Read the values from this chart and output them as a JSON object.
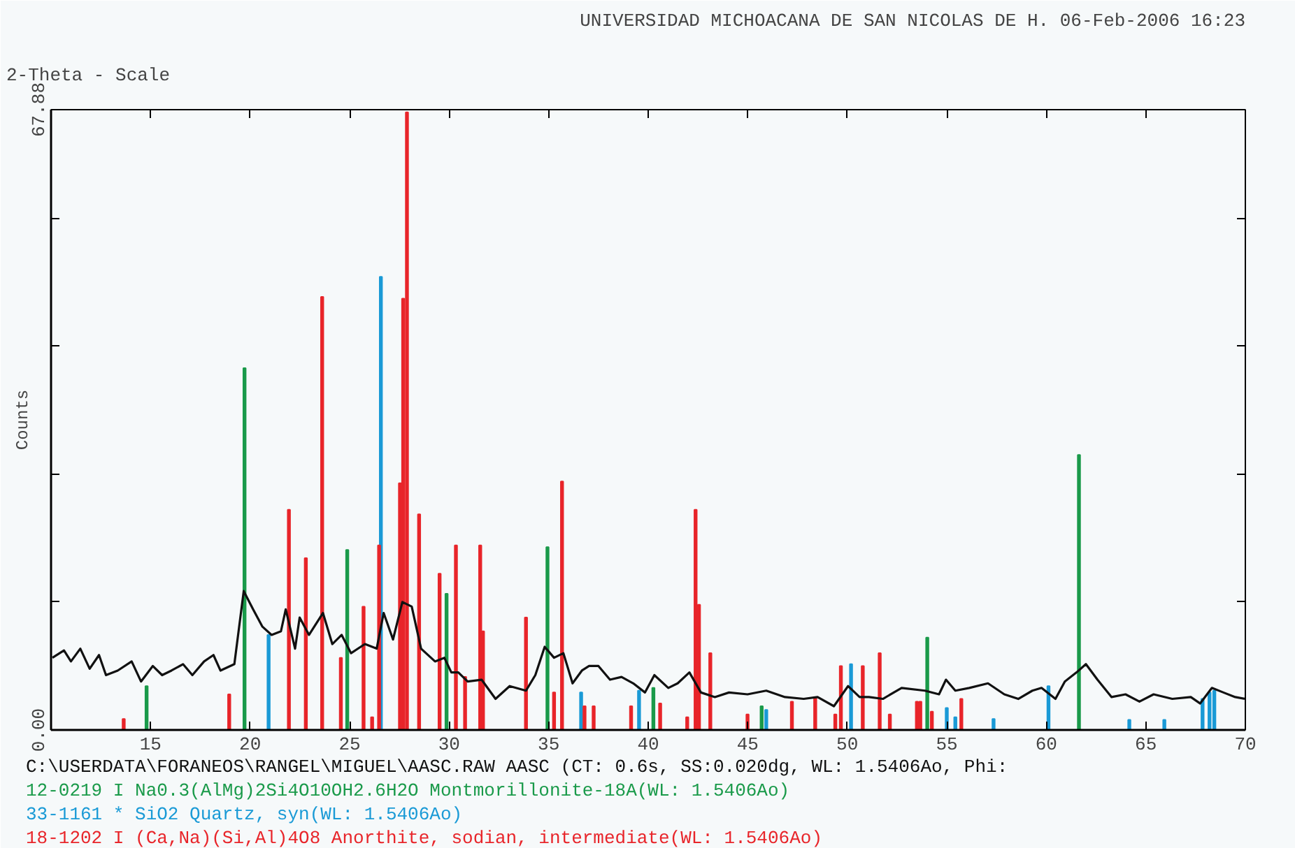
{
  "chart_data": {
    "type": "bar",
    "title": "UNIVERSIDAD MICHOACANA DE SAN NICOLAS DE H. 06-Feb-2006 16:23",
    "xlabel": "2-Theta - Scale",
    "ylabel": "Counts",
    "xlim": [
      10,
      70
    ],
    "ylim": [
      0,
      67.88
    ],
    "xticks": [
      15,
      20,
      25,
      30,
      35,
      40,
      45,
      50,
      55,
      60,
      65,
      70
    ],
    "yticks": [
      {
        "value": 0,
        "label": "0.00"
      },
      {
        "value": 14,
        "label": null
      },
      {
        "value": 28,
        "label": null
      },
      {
        "value": 42,
        "label": null
      },
      {
        "value": 56,
        "label": null
      },
      {
        "value": 67.88,
        "label": "67.88"
      }
    ],
    "grid": false,
    "series": [
      {
        "name": "C:\\USERDATA\\FORANEOS\\RANGEL\\MIGUEL\\AASC.RAW AASC (CT:  0.6s, SS:0.020dg, WL: 1.5406Ao, Phi:",
        "type": "line",
        "color": "#111111",
        "x": [
          10.07,
          10.65,
          11.0,
          11.47,
          11.94,
          12.41,
          12.76,
          13.35,
          14.05,
          14.52,
          15.11,
          15.58,
          16.05,
          16.63,
          17.1,
          17.69,
          18.16,
          18.51,
          19.21,
          19.68,
          20.15,
          20.62,
          21.08,
          21.55,
          21.79,
          22.26,
          22.49,
          22.96,
          23.66,
          24.13,
          24.6,
          25.07,
          25.77,
          26.36,
          26.71,
          27.18,
          27.65,
          28.12,
          28.59,
          29.29,
          29.76,
          30.11,
          30.46,
          30.93,
          31.63,
          32.33,
          33.04,
          33.86,
          34.33,
          34.8,
          35.27,
          35.74,
          36.2,
          36.67,
          37.03,
          37.5,
          38.08,
          38.66,
          39.25,
          39.84,
          40.31,
          41.01,
          41.48,
          42.07,
          42.65,
          43.35,
          44.06,
          44.99,
          45.93,
          46.87,
          47.81,
          48.51,
          49.33,
          50.04,
          50.62,
          51.09,
          51.79,
          52.73,
          53.9,
          54.61,
          54.96,
          55.43,
          56.13,
          57.07,
          57.89,
          58.59,
          59.3,
          59.76,
          60.46,
          60.93,
          61.52,
          61.99,
          62.57,
          63.28,
          63.98,
          64.68,
          65.39,
          66.33,
          67.26,
          67.73,
          68.32,
          68.9,
          69.49,
          70.0
        ],
        "values": [
          7.9,
          8.7,
          7.5,
          8.9,
          6.7,
          8.2,
          6.0,
          6.5,
          7.5,
          5.3,
          7.0,
          6.0,
          6.5,
          7.2,
          6.0,
          7.5,
          8.2,
          6.5,
          7.2,
          15.2,
          13.2,
          11.3,
          10.4,
          10.8,
          13.2,
          8.9,
          12.3,
          10.4,
          12.8,
          9.4,
          10.4,
          8.4,
          9.4,
          8.9,
          12.8,
          9.9,
          14.0,
          13.5,
          8.9,
          7.5,
          7.9,
          6.3,
          6.3,
          5.3,
          5.5,
          3.4,
          4.8,
          4.3,
          6.0,
          9.1,
          7.9,
          8.4,
          5.1,
          6.5,
          7.0,
          7.0,
          5.5,
          5.8,
          5.1,
          4.1,
          6.0,
          4.6,
          5.1,
          6.3,
          4.1,
          3.6,
          4.1,
          3.9,
          4.3,
          3.6,
          3.4,
          3.6,
          2.6,
          4.8,
          3.6,
          3.6,
          3.4,
          4.6,
          4.3,
          3.9,
          5.5,
          4.3,
          4.6,
          5.1,
          3.9,
          3.4,
          4.3,
          4.6,
          3.4,
          5.3,
          6.3,
          7.2,
          5.5,
          3.6,
          3.9,
          3.1,
          3.9,
          3.4,
          3.6,
          2.9,
          4.6,
          4.1,
          3.6,
          3.4
        ]
      },
      {
        "name": "12-0219 I Na0.3(AlMg)2Si4O10OH2.6H2O Montmorillonite-18A(WL: 1.5406Ao)",
        "color": "#1a9a4a",
        "x": [
          14.8,
          19.72,
          24.88,
          29.87,
          34.94,
          40.26,
          45.7,
          54.02,
          61.64
        ],
        "values": [
          4.8,
          39.6,
          19.7,
          14.9,
          20.0,
          4.6,
          2.6,
          10.1,
          30.1
        ]
      },
      {
        "name": "33-1161 * SiO2 Quartz, syn(WL: 1.5406Ao)",
        "color": "#1a9ad6",
        "x": [
          20.93,
          26.57,
          36.63,
          39.54,
          45.93,
          50.19,
          55.0,
          55.43,
          57.35,
          60.11,
          64.17,
          65.93,
          67.85,
          68.2,
          68.44
        ],
        "values": [
          10.4,
          49.6,
          4.1,
          4.3,
          2.2,
          7.2,
          2.4,
          1.4,
          1.2,
          4.8,
          1.1,
          1.1,
          3.4,
          4.1,
          4.3
        ]
      },
      {
        "name": "18-1202 I (Ca,Na)(Si,Al)4O8 Anorthite, sodian, intermediate(WL: 1.5406Ao)",
        "color": "#e8252a",
        "x": [
          13.65,
          18.95,
          21.95,
          22.8,
          23.62,
          24.56,
          25.7,
          26.13,
          26.48,
          27.53,
          27.69,
          27.88,
          28.49,
          29.52,
          30.34,
          30.8,
          31.56,
          31.7,
          33.86,
          35.27,
          35.67,
          36.8,
          37.26,
          39.14,
          40.6,
          41.96,
          42.38,
          42.55,
          43.12,
          44.99,
          47.22,
          48.39,
          49.4,
          49.68,
          50.78,
          51.63,
          52.14,
          53.5,
          53.67,
          54.25,
          55.73
        ],
        "values": [
          1.2,
          3.9,
          24.1,
          18.8,
          47.4,
          7.9,
          13.5,
          1.4,
          20.2,
          27.0,
          47.2,
          67.6,
          23.6,
          17.1,
          20.2,
          5.8,
          20.2,
          10.8,
          12.3,
          4.1,
          27.2,
          2.6,
          2.6,
          2.6,
          2.9,
          1.4,
          24.1,
          13.7,
          8.4,
          1.7,
          3.1,
          3.6,
          1.7,
          7.0,
          7.0,
          8.4,
          1.7,
          3.1,
          3.1,
          2.0,
          3.4
        ]
      }
    ]
  }
}
